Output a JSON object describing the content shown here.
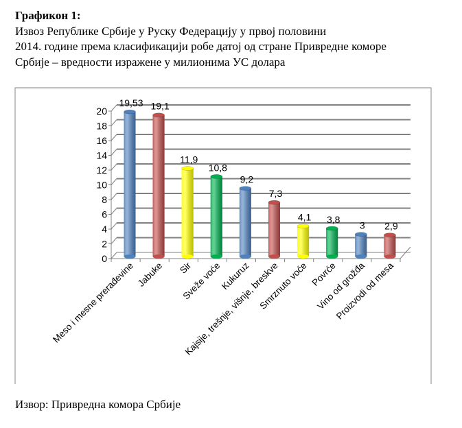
{
  "caption": {
    "label": "Графикон 1:",
    "lines": [
      "Извоз Републике Србије у Руску Федерацију у првој половини",
      "2014. године према класификацији робе датој од стране Привредне коморе",
      "Србије – вредности изражене у милионима УС долара"
    ]
  },
  "source": "Извор: Привредна комора Србије",
  "chart_data": {
    "type": "bar",
    "style": "3d-cylinder",
    "title": "",
    "xlabel": "",
    "ylabel": "",
    "ylim": [
      0,
      20
    ],
    "yticks": [
      0,
      2,
      4,
      6,
      8,
      10,
      12,
      14,
      16,
      18,
      20
    ],
    "grid": true,
    "legend": "none",
    "categories": [
      "Meso i mesne prerađevine",
      "Jabuke",
      "Sir",
      "Sveže voće",
      "Kukuruz",
      "Kajsije, trešnje, višnje, breskve",
      "Smrznuto voće",
      "Povrće",
      "Vino od grožđa",
      "Proizvodi od mesa"
    ],
    "values": [
      19.53,
      19.1,
      11.9,
      10.8,
      9.2,
      7.3,
      4.1,
      3.8,
      3,
      2.9
    ],
    "data_labels": [
      "19,53",
      "19,1",
      "11,9",
      "10,8",
      "9,2",
      "7,3",
      "4,1",
      "3,8",
      "3",
      "2,9"
    ],
    "colors": [
      "#4f81bd",
      "#c0504d",
      "#ffff00",
      "#00b050",
      "#4f81bd",
      "#c0504d",
      "#ffff00",
      "#00b050",
      "#4f81bd",
      "#c0504d"
    ]
  }
}
